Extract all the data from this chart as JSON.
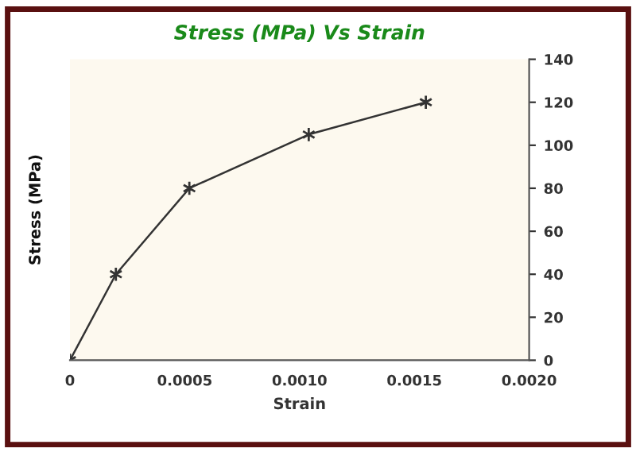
{
  "chart_data": {
    "type": "line",
    "title": "Stress (MPa) Vs Strain",
    "xlabel": "Strain",
    "ylabel": "Stress (MPa)",
    "x": [
      0,
      0.0002,
      0.00052,
      0.00104,
      0.00155
    ],
    "series": [
      {
        "color": "#333333",
        "values": [
          0,
          40,
          80,
          105,
          120
        ]
      }
    ],
    "xlim": [
      0,
      0.002
    ],
    "xticks": [
      0,
      0.0005,
      {
        "value": 0.001,
        "label": "0.0010"
      },
      0.0015,
      {
        "value": 0.002,
        "label": "0.0020"
      }
    ],
    "ylim": [
      0,
      140
    ],
    "yticks": [
      0,
      20,
      40,
      60,
      80,
      100,
      120,
      140
    ],
    "marker": "cross",
    "line_style": "solid",
    "grid": false,
    "legend": false
  }
}
